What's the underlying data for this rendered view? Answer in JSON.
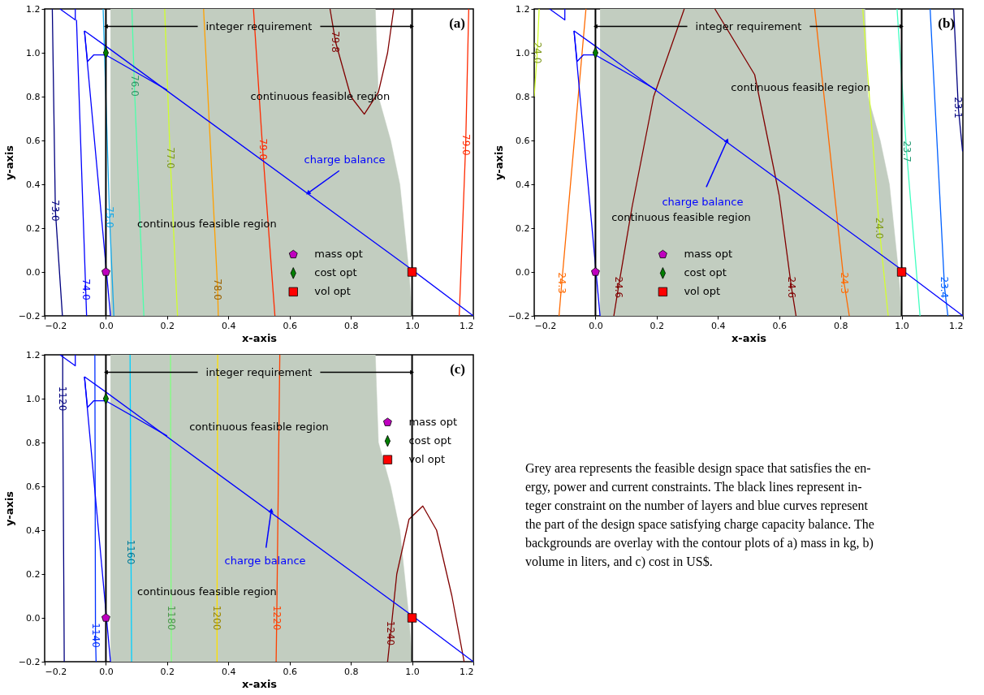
{
  "chart_data": [
    {
      "type": "line",
      "title": "(a)",
      "xlabel": "x-axis",
      "ylabel": "y-axis",
      "xlim": [
        -0.2,
        1.2
      ],
      "ylim": [
        -0.2,
        1.2
      ],
      "xticks": [
        {
          "value": -0.2,
          "label": "−0.2"
        },
        {
          "value": 0,
          "label": "0.0"
        },
        {
          "value": 0.2,
          "label": "0.2"
        },
        {
          "value": 0.4,
          "label": "0.4"
        },
        {
          "value": 0.6,
          "label": "0.6"
        },
        {
          "value": 0.8,
          "label": "0.8"
        },
        {
          "value": 1.0,
          "label": "1.0"
        },
        {
          "value": 1.2,
          "label": "1.2"
        }
      ],
      "yticks": [
        {
          "value": -0.2,
          "label": "−0.2"
        },
        {
          "value": 0,
          "label": "0.0"
        },
        {
          "value": 0.2,
          "label": "0.2"
        },
        {
          "value": 0.4,
          "label": "0.4"
        },
        {
          "value": 0.6,
          "label": "0.6"
        },
        {
          "value": 0.8,
          "label": "0.8"
        },
        {
          "value": 1.0,
          "label": "1.0"
        },
        {
          "value": 1.2,
          "label": "1.2"
        }
      ],
      "legend": "bottom",
      "series": [
        {
          "type": "area",
          "color": "#c2cdc0",
          "x": [
            0.015,
            0.88,
            0.89,
            0.93,
            0.96,
            0.975,
            0.99,
            1.0,
            0.015
          ],
          "values": [
            1.2,
            1.2,
            0.8,
            0.6,
            0.4,
            0.2,
            0.0,
            -0.2,
            -0.2
          ]
        },
        {
          "name": "73.0",
          "color": "#00007f",
          "x": [
            -0.142,
            -0.165,
            -0.175
          ],
          "values": [
            -0.2,
            0.28,
            1.2
          ]
        },
        {
          "name": "74.0",
          "color": "#0000ff",
          "x": [
            -0.063,
            -0.066,
            -0.096
          ],
          "values": [
            -0.2,
            -0.08,
            1.15
          ]
        },
        {
          "name": "75.0",
          "color": "#14a8e8",
          "x": [
            0.026,
            0.012,
            -0.009
          ],
          "values": [
            -0.2,
            0.25,
            1.2
          ]
        },
        {
          "name": "76.0",
          "color": "#4dffaa",
          "x": [
            0.124,
            0.093,
            0.085
          ],
          "values": [
            -0.2,
            0.85,
            1.2
          ]
        },
        {
          "name": "77.0",
          "color": "#d0ff2a",
          "x": [
            0.234,
            0.21,
            0.192
          ],
          "values": [
            -0.2,
            0.52,
            1.2
          ]
        },
        {
          "name": "78.0",
          "color": "#ffa000",
          "x": [
            0.367,
            0.365,
            0.319
          ],
          "values": [
            -0.2,
            -0.08,
            1.2
          ]
        },
        {
          "name": "79.0",
          "color": "#ff2a00",
          "x": [
            0.552,
            0.512,
            0.482
          ],
          "values": [
            -0.2,
            0.56,
            1.2
          ]
        },
        {
          "name": "79.0",
          "color": "#ff2a00",
          "x": [
            1.154,
            1.175,
            1.185
          ],
          "values": [
            -0.2,
            0.58,
            1.2
          ]
        },
        {
          "name": "79.8",
          "color": "#800000",
          "x": [
            0.732,
            0.75,
            0.77,
            0.8,
            0.844,
            0.89,
            0.92,
            0.94
          ],
          "values": [
            1.2,
            1.05,
            0.95,
            0.8,
            0.72,
            0.82,
            1.0,
            1.2
          ]
        },
        {
          "color": "#0000ff",
          "x": [
            -0.07,
            0.0,
            1.0,
            1.2
          ],
          "values": [
            1.1,
            1.03,
            0.01,
            -0.2
          ]
        },
        {
          "color": "#0000ff",
          "x": [
            -0.07,
            -0.06,
            -0.04,
            0.0,
            0.1,
            0.2
          ],
          "values": [
            1.1,
            0.96,
            0.99,
            0.99,
            0.91,
            0.83
          ]
        },
        {
          "color": "#0000ff",
          "x": [
            -0.07,
            0.015
          ],
          "values": [
            1.1,
            -0.2
          ]
        },
        {
          "color": "#0000ff",
          "x": [
            -0.15,
            -0.1,
            -0.1
          ],
          "values": [
            1.2,
            1.15,
            1.2
          ]
        },
        {
          "type": "scatter",
          "name": "mass opt",
          "color": "#bf00bf",
          "x": [
            0
          ],
          "values": [
            0
          ]
        },
        {
          "type": "scatter",
          "name": "cost opt",
          "color": "#007f00",
          "marker": "diamond",
          "x": [
            0
          ],
          "values": [
            1
          ]
        },
        {
          "type": "scatter",
          "name": "vol opt",
          "color": "#ff0000",
          "marker": "square",
          "x": [
            1
          ],
          "values": [
            0
          ]
        }
      ],
      "ref_lines": [
        {
          "axis": "x",
          "value": 0,
          "color": "#000000"
        },
        {
          "axis": "x",
          "value": 1,
          "color": "#000000"
        }
      ],
      "annotations": [
        {
          "text": "integer requirement",
          "x": 1.0,
          "y": 1.12
        },
        "continuous feasible region",
        "continuous feasible region",
        {
          "text": "charge balance",
          "x": 0.66,
          "y": 0.36
        }
      ]
    },
    {
      "type": "line",
      "title": "(b)",
      "xlabel": "x-axis",
      "ylabel": "y-axis",
      "xlim": [
        -0.2,
        1.2
      ],
      "ylim": [
        -0.2,
        1.2
      ],
      "xticks": [
        {
          "value": -0.2,
          "label": "−0.2"
        },
        {
          "value": 0,
          "label": "0.0"
        },
        {
          "value": 0.2,
          "label": "0.2"
        },
        {
          "value": 0.4,
          "label": "0.4"
        },
        {
          "value": 0.6,
          "label": "0.6"
        },
        {
          "value": 0.8,
          "label": "0.8"
        },
        {
          "value": 1.0,
          "label": "1.0"
        },
        {
          "value": 1.2,
          "label": "1.2"
        }
      ],
      "yticks": [
        {
          "value": -0.2,
          "label": "−0.2"
        },
        {
          "value": 0,
          "label": "0.0"
        },
        {
          "value": 0.2,
          "label": "0.2"
        },
        {
          "value": 0.4,
          "label": "0.4"
        },
        {
          "value": 0.6,
          "label": "0.6"
        },
        {
          "value": 0.8,
          "label": "0.8"
        },
        {
          "value": 1.0,
          "label": "1.0"
        },
        {
          "value": 1.2,
          "label": "1.2"
        }
      ],
      "legend": "bottom",
      "series": [
        {
          "type": "area",
          "color": "#c2cdc0",
          "x": [
            0.015,
            0.88,
            0.89,
            0.93,
            0.96,
            0.975,
            0.99,
            1.0,
            0.015
          ],
          "values": [
            1.2,
            1.2,
            0.8,
            0.6,
            0.4,
            0.2,
            0.0,
            -0.2,
            -0.2
          ]
        },
        {
          "name": "24.0",
          "color": "#d4ff30",
          "x": [
            -0.2,
            -0.19,
            -0.184
          ],
          "values": [
            0.8,
            1.0,
            1.2
          ]
        },
        {
          "name": "24.3",
          "color": "#ff6a00",
          "x": [
            -0.119,
            -0.11,
            -0.031
          ],
          "values": [
            -0.2,
            -0.05,
            1.2
          ]
        },
        {
          "name": "24.6",
          "color": "#800000",
          "x": [
            0.06,
            0.075,
            0.12,
            0.19,
            0.29
          ],
          "values": [
            -0.2,
            -0.07,
            0.3,
            0.8,
            1.2
          ]
        },
        {
          "name": "24.6",
          "color": "#800000",
          "x": [
            0.655,
            0.64,
            0.6,
            0.52,
            0.39
          ],
          "values": [
            -0.2,
            -0.07,
            0.35,
            0.9,
            1.2
          ]
        },
        {
          "name": "24.3",
          "color": "#ff6a00",
          "x": [
            0.829,
            0.812,
            0.716
          ],
          "values": [
            -0.2,
            -0.05,
            1.2
          ]
        },
        {
          "name": "24.0",
          "color": "#d4ff30",
          "x": [
            0.956,
            0.927,
            0.873
          ],
          "values": [
            -0.2,
            0.2,
            1.2
          ]
        },
        {
          "name": "23.7",
          "color": "#40ffc0",
          "x": [
            1.06,
            1.016,
            0.985
          ],
          "values": [
            -0.2,
            0.55,
            1.2
          ]
        },
        {
          "name": "23.4",
          "color": "#0060ff",
          "x": [
            1.151,
            1.14,
            1.093
          ],
          "values": [
            -0.2,
            -0.07,
            1.2
          ]
        },
        {
          "name": "23.1",
          "color": "#00007f",
          "x": [
            1.17,
            1.185,
            1.199
          ],
          "values": [
            1.2,
            0.75,
            0.55
          ]
        },
        {
          "color": "#0000ff",
          "x": [
            -0.07,
            0.0,
            1.0,
            1.2
          ],
          "values": [
            1.1,
            1.03,
            0.01,
            -0.2
          ]
        },
        {
          "color": "#0000ff",
          "x": [
            -0.07,
            -0.06,
            -0.04,
            0.0,
            0.1,
            0.2
          ],
          "values": [
            1.1,
            0.96,
            0.99,
            0.99,
            0.91,
            0.83
          ]
        },
        {
          "color": "#0000ff",
          "x": [
            -0.07,
            0.015
          ],
          "values": [
            1.1,
            -0.2
          ]
        },
        {
          "color": "#0000ff",
          "x": [
            -0.15,
            -0.1,
            -0.1
          ],
          "values": [
            1.2,
            1.15,
            1.2
          ]
        },
        {
          "type": "scatter",
          "name": "mass opt",
          "color": "#bf00bf",
          "x": [
            0
          ],
          "values": [
            0
          ]
        },
        {
          "type": "scatter",
          "name": "cost opt",
          "color": "#007f00",
          "marker": "diamond",
          "x": [
            0
          ],
          "values": [
            1
          ]
        },
        {
          "type": "scatter",
          "name": "vol opt",
          "color": "#ff0000",
          "marker": "square",
          "x": [
            1
          ],
          "values": [
            0
          ]
        }
      ],
      "ref_lines": [
        {
          "axis": "x",
          "value": 0,
          "color": "#000000"
        },
        {
          "axis": "x",
          "value": 1,
          "color": "#000000"
        }
      ],
      "annotations": [
        {
          "text": "integer requirement",
          "x": 1.0,
          "y": 1.12
        },
        "continuous feasible region",
        "continuous feasible region",
        {
          "text": "charge balance",
          "x": 0.43,
          "y": 0.6
        }
      ]
    },
    {
      "type": "line",
      "title": "(c)",
      "xlabel": "x-axis",
      "ylabel": "y-axis",
      "xlim": [
        -0.2,
        1.2
      ],
      "ylim": [
        -0.2,
        1.2
      ],
      "xticks": [
        {
          "value": -0.2,
          "label": "−0.2"
        },
        {
          "value": 0,
          "label": "0.0"
        },
        {
          "value": 0.2,
          "label": "0.2"
        },
        {
          "value": 0.4,
          "label": "0.4"
        },
        {
          "value": 0.6,
          "label": "0.6"
        },
        {
          "value": 0.8,
          "label": "0.8"
        },
        {
          "value": 1.0,
          "label": "1.0"
        },
        {
          "value": 1.2,
          "label": "1.2"
        }
      ],
      "yticks": [
        {
          "value": -0.2,
          "label": "−0.2"
        },
        {
          "value": 0,
          "label": "0.0"
        },
        {
          "value": 0.2,
          "label": "0.2"
        },
        {
          "value": 0.4,
          "label": "0.4"
        },
        {
          "value": 0.6,
          "label": "0.6"
        },
        {
          "value": 0.8,
          "label": "0.8"
        },
        {
          "value": 1.0,
          "label": "1.0"
        },
        {
          "value": 1.2,
          "label": "1.2"
        }
      ],
      "legend": "top right",
      "series": [
        {
          "type": "area",
          "color": "#c2cdc0",
          "x": [
            0.015,
            0.88,
            0.89,
            0.93,
            0.96,
            0.975,
            0.99,
            1.0,
            0.015
          ],
          "values": [
            1.2,
            1.2,
            0.8,
            0.6,
            0.4,
            0.2,
            0.0,
            -0.2,
            -0.2
          ]
        },
        {
          "name": "1120",
          "color": "#00007f",
          "x": [
            -0.136,
            -0.141,
            -0.141
          ],
          "values": [
            -0.2,
            1.0,
            1.2
          ]
        },
        {
          "name": "1140",
          "color": "#0030ff",
          "x": [
            -0.032,
            -0.034,
            -0.036
          ],
          "values": [
            -0.2,
            -0.08,
            1.2
          ]
        },
        {
          "name": "1160",
          "color": "#00d0ff",
          "x": [
            0.084,
            0.082,
            0.079
          ],
          "values": [
            -0.2,
            0.3,
            1.2
          ]
        },
        {
          "name": "1180",
          "color": "#80ff80",
          "x": [
            0.214,
            0.213,
            0.211
          ],
          "values": [
            -0.2,
            0.0,
            1.2
          ]
        },
        {
          "name": "1200",
          "color": "#ffe000",
          "x": [
            0.363,
            0.363,
            0.365
          ],
          "values": [
            -0.2,
            0.0,
            1.2
          ]
        },
        {
          "name": "1220",
          "color": "#ff4000",
          "x": [
            0.556,
            0.558,
            0.568
          ],
          "values": [
            -0.2,
            0.0,
            1.2
          ]
        },
        {
          "name": "1240",
          "color": "#800000",
          "x": [
            0.92,
            0.93,
            0.95,
            0.99,
            1.035,
            1.08,
            1.13,
            1.17
          ],
          "values": [
            -0.2,
            -0.07,
            0.2,
            0.45,
            0.51,
            0.4,
            0.1,
            -0.2
          ]
        },
        {
          "color": "#0000ff",
          "x": [
            -0.07,
            0.0,
            1.0,
            1.2
          ],
          "values": [
            1.1,
            1.03,
            0.01,
            -0.2
          ]
        },
        {
          "color": "#0000ff",
          "x": [
            -0.07,
            -0.06,
            -0.04,
            0.0,
            0.1,
            0.2
          ],
          "values": [
            1.1,
            0.96,
            0.99,
            0.99,
            0.91,
            0.83
          ]
        },
        {
          "color": "#0000ff",
          "x": [
            -0.07,
            0.015
          ],
          "values": [
            1.1,
            -0.2
          ]
        },
        {
          "color": "#0000ff",
          "x": [
            -0.15,
            -0.1,
            -0.1
          ],
          "values": [
            1.2,
            1.15,
            1.2
          ]
        },
        {
          "type": "scatter",
          "name": "mass opt",
          "color": "#bf00bf",
          "x": [
            0
          ],
          "values": [
            0
          ]
        },
        {
          "type": "scatter",
          "name": "cost opt",
          "color": "#007f00",
          "marker": "diamond",
          "x": [
            0
          ],
          "values": [
            1
          ]
        },
        {
          "type": "scatter",
          "name": "vol opt",
          "color": "#ff0000",
          "marker": "square",
          "x": [
            1
          ],
          "values": [
            0
          ]
        }
      ],
      "ref_lines": [
        {
          "axis": "x",
          "value": 0,
          "color": "#000000"
        },
        {
          "axis": "x",
          "value": 1,
          "color": "#000000"
        }
      ],
      "annotations": [
        {
          "text": "integer requirement",
          "x": 1.0,
          "y": 1.12
        },
        "continuous feasible region",
        "continuous feasible region",
        {
          "text": "charge balance",
          "x": 0.54,
          "y": 0.49
        }
      ]
    },
    {
      "type": "other",
      "annotations": [
        "Grey area represents the feasible design space that satisfies the en-",
        "ergy, power and current constraints.  The black lines represent in-",
        "teger constraint on the number of layers and blue curves represent",
        "the part of the design space satisfying charge capacity balance. The",
        "backgrounds are overlay with the contour plots of a) mass in kg, b)",
        "volume in liters, and c) cost in US$."
      ]
    }
  ]
}
